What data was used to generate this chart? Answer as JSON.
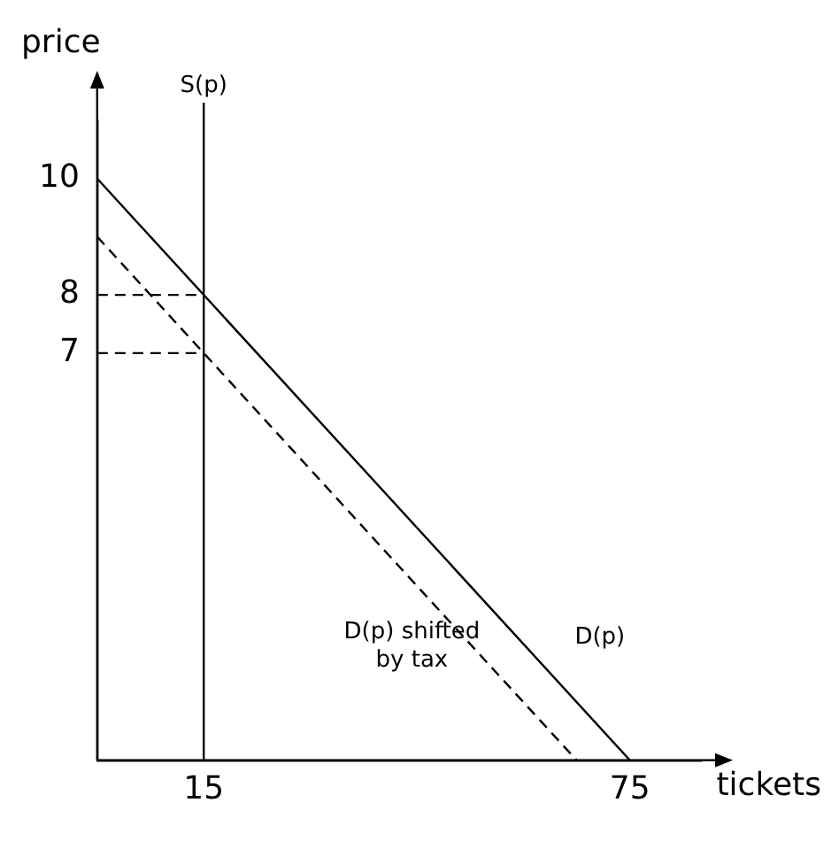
{
  "chart_data": {
    "type": "line",
    "xlabel": "tickets",
    "ylabel": "price",
    "xlim": [
      0,
      85
    ],
    "ylim": [
      0,
      11
    ],
    "xticks": [
      15,
      75
    ],
    "yticks": [
      7,
      8,
      10
    ],
    "grid": false,
    "legend": false,
    "marker": "none",
    "series": [
      {
        "name": "D(p)",
        "color": "#000000",
        "x": [
          0,
          75
        ],
        "values": [
          10,
          0
        ],
        "line_style": "solid"
      },
      {
        "name": "D(p) shifted by tax",
        "color": "#000000",
        "x": [
          0,
          67.5
        ],
        "values": [
          9,
          0
        ],
        "line_style": "dashed"
      },
      {
        "color": "#000000",
        "x": [
          0,
          15
        ],
        "values": [
          8,
          8
        ],
        "line_style": "dashed"
      },
      {
        "color": "#000000",
        "x": [
          0,
          15
        ],
        "values": [
          7,
          7
        ],
        "line_style": "dashed"
      }
    ],
    "ref_lines": [
      {
        "axis": "x",
        "value": 15,
        "label": "S(p)",
        "color": "#000000"
      }
    ]
  }
}
